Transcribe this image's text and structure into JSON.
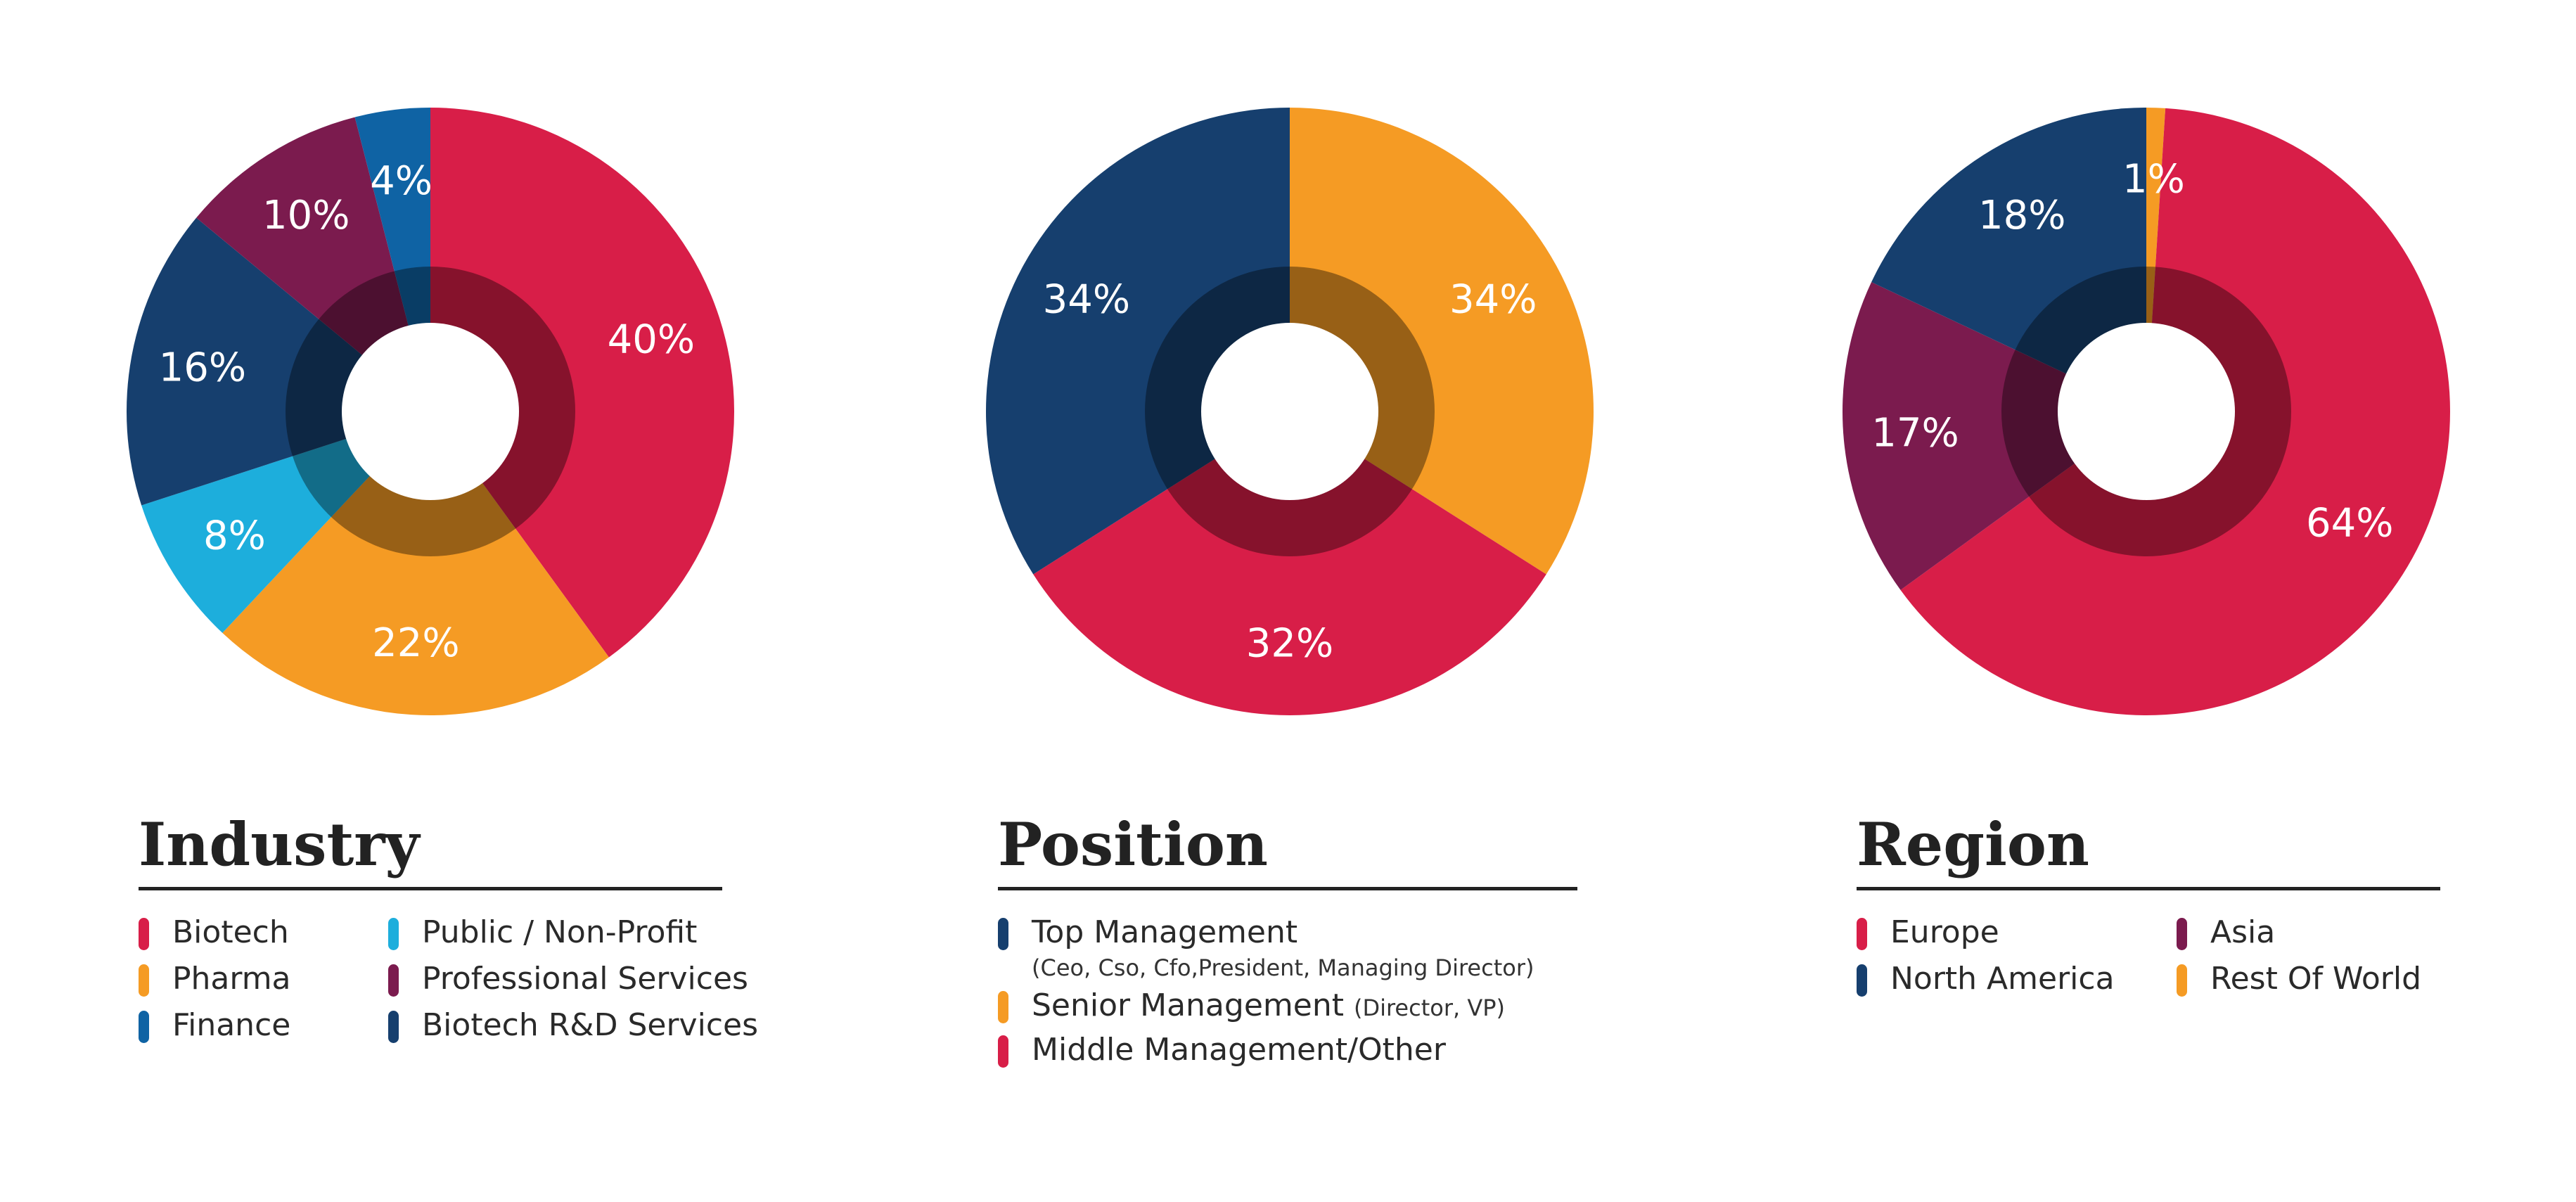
{
  "colors": {
    "red": "#D81E48",
    "orange": "#F59B24",
    "blue": "#0F63A4",
    "cyan": "#1DAEDC",
    "purple": "#7B1B4E",
    "navy": "#163F6E"
  },
  "chart_data": [
    {
      "type": "pie",
      "title": "Industry",
      "slices": [
        {
          "label": "Biotech",
          "value": 40,
          "display": "40%",
          "color": "#D81E48"
        },
        {
          "label": "Pharma",
          "value": 22,
          "display": "22%",
          "color": "#F59B24"
        },
        {
          "label": "Public / Non-Profit",
          "value": 8,
          "display": "8%",
          "color": "#1DAEDC"
        },
        {
          "label": "Biotech R&D Services",
          "value": 16,
          "display": "16%",
          "color": "#163F6E"
        },
        {
          "label": "Professional Services",
          "value": 10,
          "display": "10%",
          "color": "#7B1B4E"
        },
        {
          "label": "Finance",
          "value": 4,
          "display": "4%",
          "color": "#0F63A4"
        }
      ],
      "legend": [
        {
          "label": "Biotech",
          "color": "#D81E48"
        },
        {
          "label": "Public / Non-Profit",
          "color": "#1DAEDC"
        },
        {
          "label": "Pharma",
          "color": "#F59B24"
        },
        {
          "label": "Professional Services",
          "color": "#7B1B4E"
        },
        {
          "label": "Finance",
          "color": "#0F63A4"
        },
        {
          "label": "Biotech R&D Services",
          "color": "#163F6E"
        }
      ]
    },
    {
      "type": "pie",
      "title": "Position",
      "slices": [
        {
          "label": "Senior Management",
          "value": 34,
          "display": "34%",
          "color": "#F59B24"
        },
        {
          "label": "Middle Management/Other",
          "value": 32,
          "display": "32%",
          "color": "#D81E48"
        },
        {
          "label": "Top Management",
          "value": 34,
          "display": "34%",
          "color": "#163F6E"
        }
      ],
      "legend": [
        {
          "label": "Top Management",
          "note": "(Ceo, Cso, Cfo,President, Managing Director)",
          "color": "#163F6E"
        },
        {
          "label": "Senior Management",
          "inline_note": "(Director, VP)",
          "color": "#F59B24"
        },
        {
          "label": "Middle Management/Other",
          "color": "#D81E48"
        }
      ]
    },
    {
      "type": "pie",
      "title": "Region",
      "slices": [
        {
          "label": "Rest Of World",
          "value": 1,
          "display": "1%",
          "color": "#F59B24"
        },
        {
          "label": "Europe",
          "value": 64,
          "display": "64%",
          "color": "#D81E48"
        },
        {
          "label": "Asia",
          "value": 17,
          "display": "17%",
          "color": "#7B1B4E"
        },
        {
          "label": "North America",
          "value": 18,
          "display": "18%",
          "color": "#163F6E"
        }
      ],
      "legend": [
        {
          "label": "Europe",
          "color": "#D81E48"
        },
        {
          "label": "Asia",
          "color": "#7B1B4E"
        },
        {
          "label": "North America",
          "color": "#163F6E"
        },
        {
          "label": "Rest Of World",
          "color": "#F59B24"
        }
      ]
    }
  ]
}
